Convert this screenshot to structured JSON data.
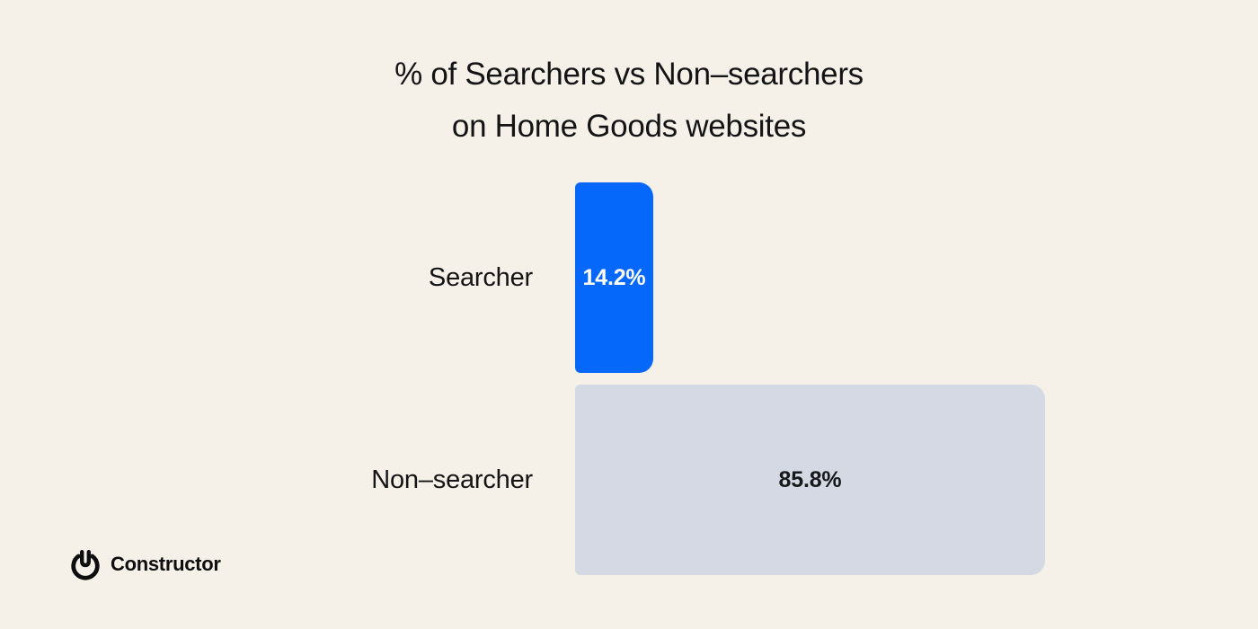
{
  "title": {
    "line1": "% of Searchers vs Non–searchers",
    "line2": "on Home Goods websites"
  },
  "chart_data": {
    "type": "bar",
    "orientation": "horizontal",
    "title": "% of Searchers vs Non–searchers on Home Goods websites",
    "categories": [
      "Searcher",
      "Non–searcher"
    ],
    "values": [
      14.2,
      85.8
    ],
    "value_labels": [
      "14.2%",
      "85.8%"
    ],
    "bar_colors": [
      "#0667FB",
      "#D4D9E3"
    ],
    "value_label_colors": [
      "#FFFFFF",
      "#17181A"
    ],
    "xlabel": "",
    "ylabel": "",
    "xlim": [
      0,
      100
    ],
    "grid": false,
    "legend": false,
    "axes_visible": false
  },
  "branding": {
    "logo_icon": "constructor-power-wrench-icon",
    "logo_text": "Constructor",
    "logo_color": "#0E0E10"
  },
  "colors": {
    "background": "#F5F0E8",
    "title_text": "#141416",
    "label_text": "#141416",
    "searcher_bar": "#0667FB",
    "non_searcher_bar": "#D4D9E3",
    "searcher_value_text": "#FFFFFF",
    "non_searcher_value_text": "#17181A"
  }
}
